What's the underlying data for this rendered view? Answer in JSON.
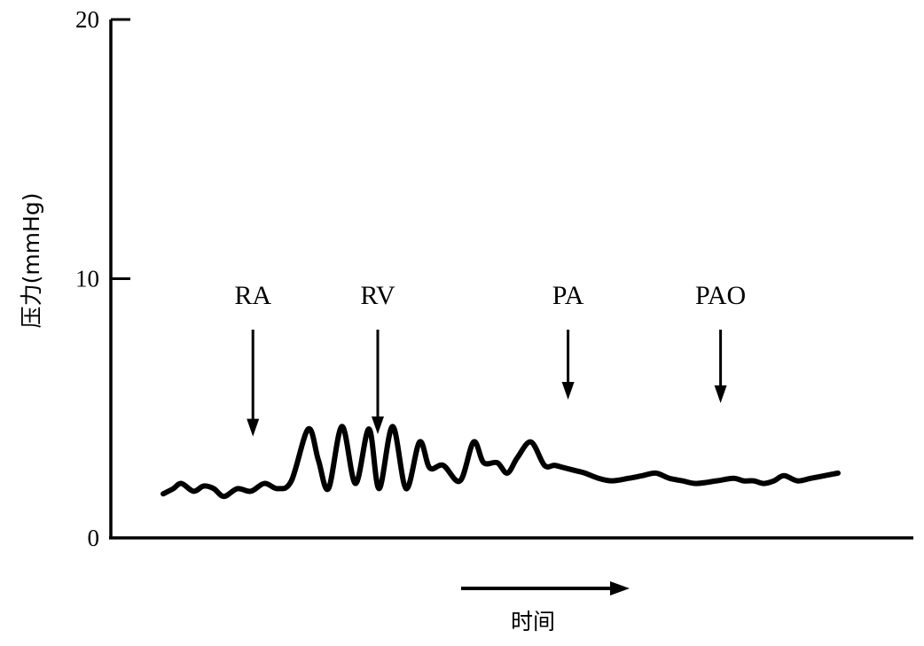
{
  "chart_data": {
    "type": "line",
    "ylabel": "压力(mmHg)",
    "xlabel": "时间",
    "ylim": [
      0,
      20
    ],
    "y_ticks": [
      "0",
      "10",
      "20"
    ],
    "grid": false,
    "legend": "none",
    "annotations": [
      {
        "label": "RA",
        "x": 0.133
      },
      {
        "label": "RV",
        "x": 0.318
      },
      {
        "label": "PA",
        "x": 0.6
      },
      {
        "label": "PAO",
        "x": 0.826
      }
    ],
    "series": [
      {
        "color": "#000000",
        "x": [
          0.0,
          0.015,
          0.027,
          0.045,
          0.06,
          0.075,
          0.09,
          0.11,
          0.13,
          0.15,
          0.17,
          0.19,
          0.215,
          0.23,
          0.245,
          0.265,
          0.285,
          0.305,
          0.32,
          0.34,
          0.36,
          0.38,
          0.395,
          0.415,
          0.44,
          0.46,
          0.475,
          0.495,
          0.51,
          0.525,
          0.545,
          0.565,
          0.58,
          0.595,
          0.61,
          0.625,
          0.645,
          0.665,
          0.69,
          0.71,
          0.73,
          0.75,
          0.77,
          0.79,
          0.82,
          0.845,
          0.86,
          0.875,
          0.89,
          0.905,
          0.92,
          0.94,
          0.96,
          0.98,
          1.0
        ],
        "y": [
          1.7,
          1.9,
          2.1,
          1.8,
          2.0,
          1.9,
          1.6,
          1.9,
          1.8,
          2.1,
          1.9,
          2.2,
          4.2,
          3.0,
          1.9,
          4.3,
          2.1,
          4.2,
          1.9,
          4.3,
          1.9,
          3.7,
          2.7,
          2.8,
          2.2,
          3.7,
          2.9,
          2.9,
          2.5,
          3.1,
          3.7,
          2.8,
          2.8,
          2.7,
          2.6,
          2.5,
          2.3,
          2.2,
          2.3,
          2.4,
          2.5,
          2.3,
          2.2,
          2.1,
          2.2,
          2.3,
          2.2,
          2.2,
          2.1,
          2.2,
          2.4,
          2.2,
          2.3,
          2.4,
          2.5
        ]
      }
    ]
  }
}
